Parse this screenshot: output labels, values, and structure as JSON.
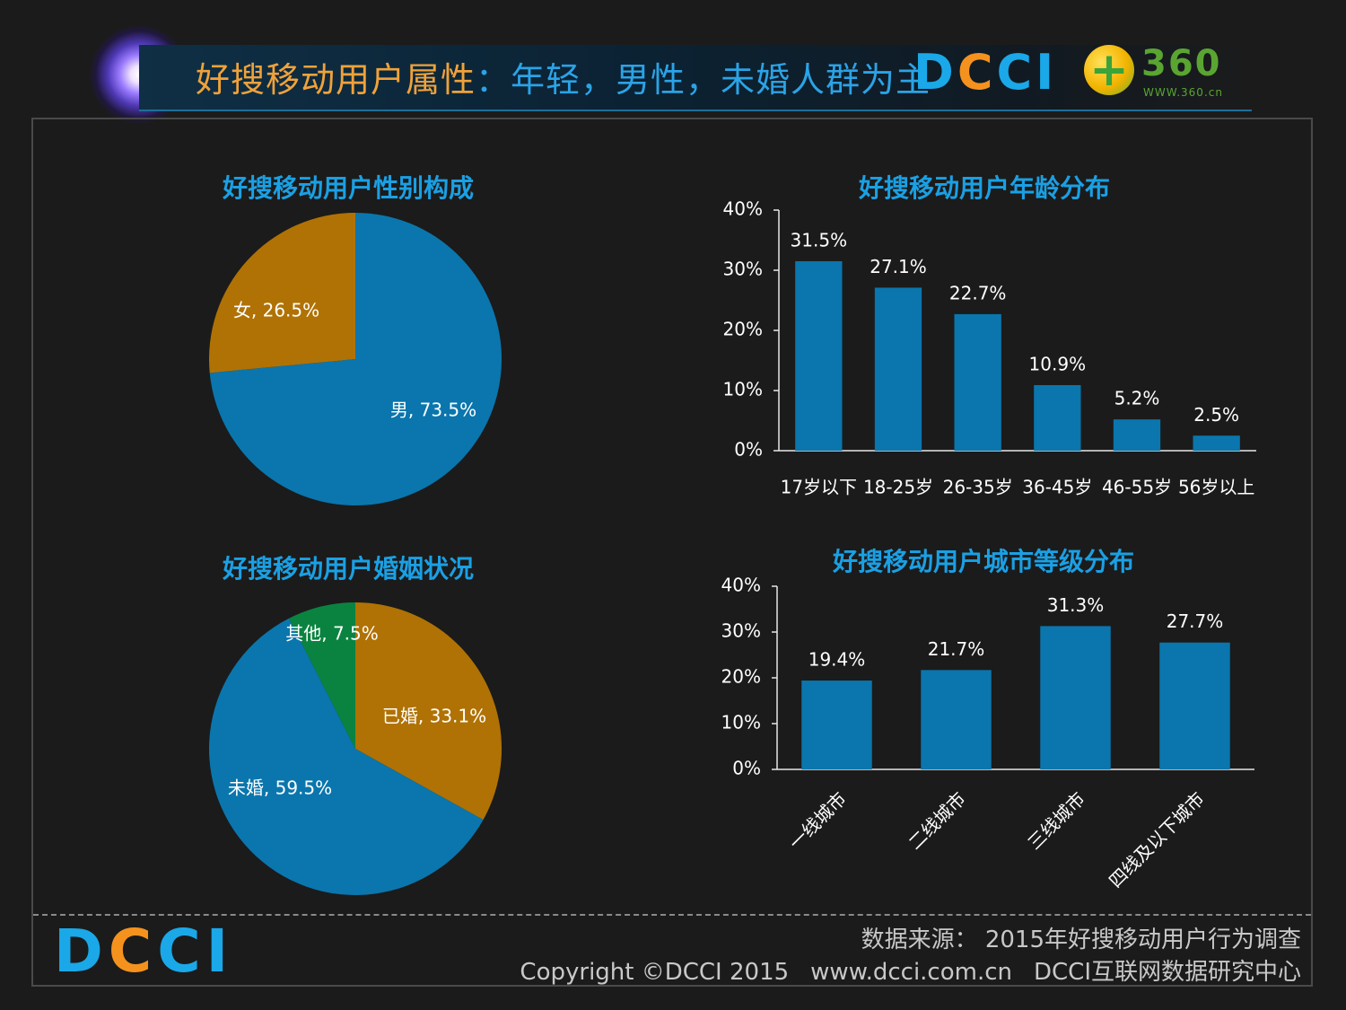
{
  "header": {
    "title_part1": "好搜移动用户属性",
    "title_part2": "：年轻，男性，未婚人群为主",
    "logo_dcci": [
      "D",
      "C",
      "C",
      "I"
    ],
    "logo_360": "360",
    "logo_360_url": "WWW.360.cn"
  },
  "colors": {
    "blue": "#0a76ad",
    "orange": "#b07204",
    "green": "#0b8340",
    "title_blue": "#1aa0e4",
    "logo_blue": "#1aa8e8",
    "logo_orange": "#f5921e"
  },
  "chart_data": [
    {
      "type": "pie",
      "title": "好搜移动用户性别构成",
      "slices": [
        {
          "label": "男",
          "value": 73.5,
          "display": "男, 73.5%",
          "color": "#0a76ad"
        },
        {
          "label": "女",
          "value": 26.5,
          "display": "女, 26.5%",
          "color": "#b07204"
        }
      ]
    },
    {
      "type": "bar",
      "title": "好搜移动用户年龄分布",
      "categories": [
        "17岁以下",
        "18-25岁",
        "26-35岁",
        "36-45岁",
        "46-55岁",
        "56岁以上"
      ],
      "values": [
        31.5,
        27.1,
        22.7,
        10.9,
        5.2,
        2.5
      ],
      "labels": [
        "31.5%",
        "27.1%",
        "22.7%",
        "10.9%",
        "5.2%",
        "2.5%"
      ],
      "yticks": [
        "0%",
        "10%",
        "20%",
        "30%",
        "40%"
      ],
      "ylim": [
        0,
        40
      ]
    },
    {
      "type": "pie",
      "title": "好搜移动用户婚姻状况",
      "slices": [
        {
          "label": "已婚",
          "value": 33.1,
          "display": "已婚, 33.1%",
          "color": "#b07204"
        },
        {
          "label": "未婚",
          "value": 59.5,
          "display": "未婚, 59.5%",
          "color": "#0a76ad"
        },
        {
          "label": "其他",
          "value": 7.5,
          "display": "其他, 7.5%",
          "color": "#0b8340"
        }
      ]
    },
    {
      "type": "bar",
      "title": "好搜移动用户城市等级分布",
      "categories": [
        "一线城市",
        "二线城市",
        "三线城市",
        "四线及以下城市"
      ],
      "values": [
        19.4,
        21.7,
        31.3,
        27.7
      ],
      "labels": [
        "19.4%",
        "21.7%",
        "31.3%",
        "27.7%"
      ],
      "yticks": [
        "0%",
        "10%",
        "20%",
        "30%",
        "40%"
      ],
      "ylim": [
        0,
        40
      ]
    }
  ],
  "footer": {
    "logo": [
      "D",
      "C",
      "C",
      "I"
    ],
    "source": "数据来源： 2015年好搜移动用户行为调查",
    "copyright": "Copyright ©DCCI 2015",
    "website": "www.dcci.com.cn",
    "org": "DCCI互联网数据研究中心"
  }
}
